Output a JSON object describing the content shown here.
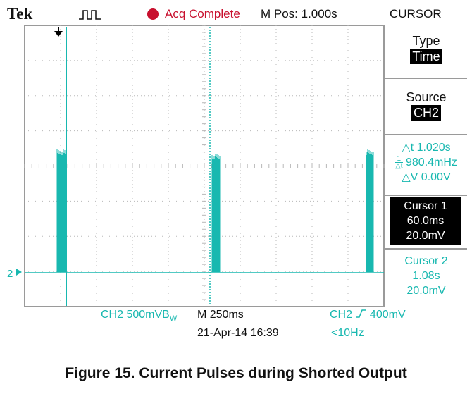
{
  "header": {
    "brand": "Tek",
    "trigger_icon": "trigger-status-pulse-icon",
    "acq_status": "Acq Complete",
    "m_pos": "M Pos: 1.000s",
    "menu_title": "CURSOR"
  },
  "colors": {
    "trace": "#18b8b0",
    "acq_red": "#c8102e",
    "grid": "#b8b8b8"
  },
  "channel_marker": "2",
  "side_menu": {
    "type_label": "Type",
    "type_value": "Time",
    "source_label": "Source",
    "source_value": "CH2",
    "delta_t": "△t 1.020s",
    "inv_delta_t": "980.4mHz",
    "delta_v": "△V 0.00V",
    "cursor1": {
      "label": "Cursor 1",
      "time": "60.0ms",
      "volt": "20.0mV"
    },
    "cursor2": {
      "label": "Cursor 2",
      "time": "1.08s",
      "volt": "20.0mV"
    }
  },
  "bottom": {
    "ch_scale": "CH2  500mV",
    "bw_mark": "B",
    "bw_sub": "W",
    "timebase": "M 250ms",
    "trigger": "CH2",
    "trigger_level": "400mV",
    "date": "21-Apr-14 16:39",
    "freq": "<10Hz"
  },
  "caption": "Figure 15. Current Pulses during Shorted Output"
}
